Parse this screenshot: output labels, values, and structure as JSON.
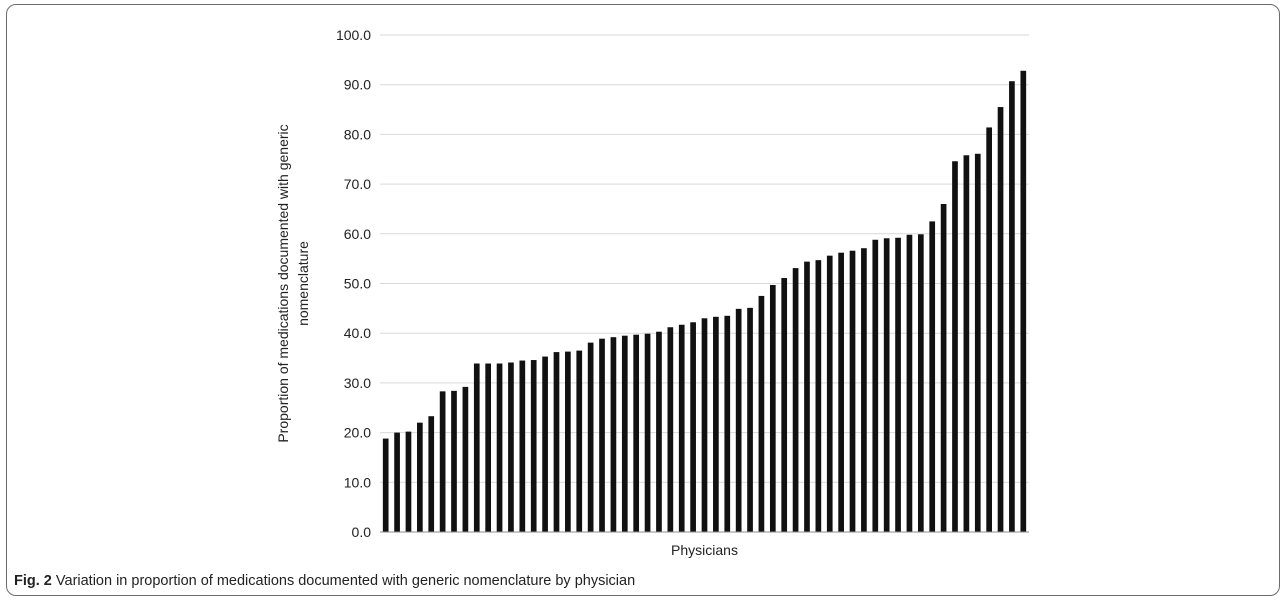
{
  "caption": {
    "label": "Fig. 2",
    "text": "Variation in proportion of medications documented with generic nomenclature by physician"
  },
  "chart_data": {
    "type": "bar",
    "xlabel": "Physicians",
    "ylabel": "Proportion of medications documented with generic nomenclature",
    "ylim": [
      0,
      100
    ],
    "yticks": [
      "0.0",
      "10.0",
      "20.0",
      "30.0",
      "40.0",
      "50.0",
      "60.0",
      "70.0",
      "80.0",
      "90.0",
      "100.0"
    ],
    "grid": true,
    "bar_color": "#111111",
    "values": [
      18.8,
      20.0,
      20.2,
      22.0,
      23.3,
      28.3,
      28.4,
      29.2,
      33.9,
      33.9,
      33.9,
      34.1,
      34.5,
      34.6,
      35.3,
      36.2,
      36.3,
      36.5,
      38.1,
      38.9,
      39.2,
      39.5,
      39.7,
      39.9,
      40.3,
      41.2,
      41.7,
      42.2,
      43.0,
      43.3,
      43.5,
      44.9,
      45.1,
      47.5,
      49.7,
      51.1,
      53.1,
      54.4,
      54.7,
      55.6,
      56.2,
      56.6,
      57.1,
      58.8,
      59.1,
      59.2,
      59.8,
      59.9,
      62.5,
      66.0,
      74.6,
      75.8,
      76.1,
      81.4,
      85.5,
      90.7,
      92.8
    ]
  }
}
